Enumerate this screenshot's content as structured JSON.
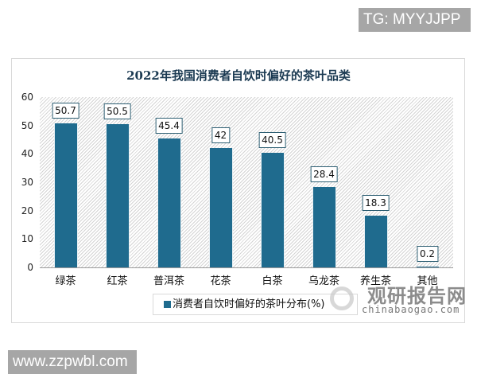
{
  "watermarks": {
    "top_right": "TG: MYYJJPP",
    "bottom_left": "www.zzpwbl.com",
    "chart_cn": "观研报告网",
    "chart_en": "chinabaogao.com"
  },
  "colors": {
    "bar": "#1f6b8e",
    "title": "#1b3a52"
  },
  "chart_data": {
    "type": "bar",
    "title": "2022年我国消费者自饮时偏好的茶叶品类",
    "categories": [
      "绿茶",
      "红茶",
      "普洱茶",
      "花茶",
      "白茶",
      "乌龙茶",
      "养生茶",
      "其他"
    ],
    "series": [
      {
        "name": "消费者自饮时偏好的茶叶分布(%)",
        "values": [
          50.7,
          50.5,
          45.4,
          42,
          40.5,
          28.4,
          18.3,
          0.2
        ]
      }
    ],
    "value_labels": [
      "50.7",
      "50.5",
      "45.4",
      "42",
      "40.5",
      "28.4",
      "18.3",
      "0.2"
    ],
    "xlabel": "",
    "ylabel": "",
    "ylim": [
      0,
      60
    ],
    "yticks": [
      "0",
      "10",
      "20",
      "30",
      "40",
      "50",
      "60"
    ],
    "grid": false,
    "legend_position": "bottom"
  }
}
